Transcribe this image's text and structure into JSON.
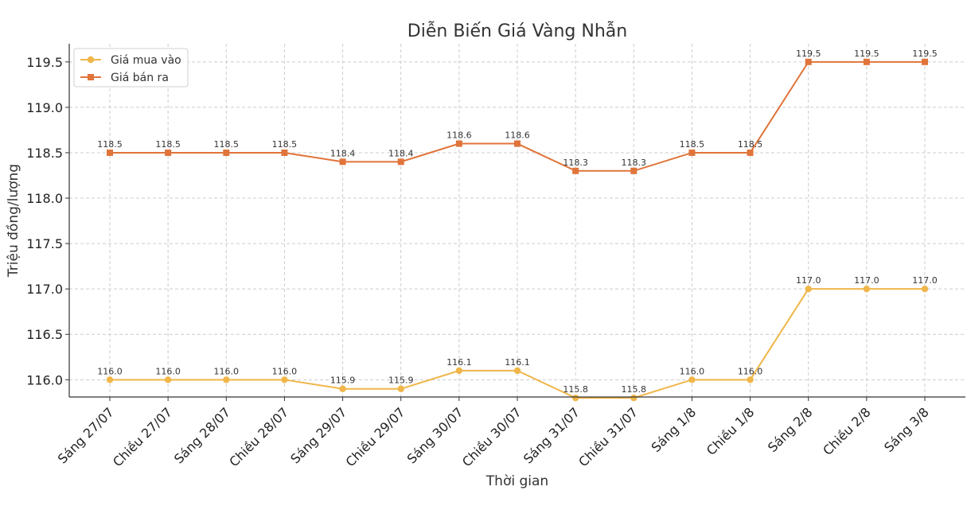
{
  "chart_data": {
    "type": "line",
    "title": "Diễn Biến Giá Vàng Nhẫn",
    "xlabel": "Thời gian",
    "ylabel": "Triệu đồng/lượng",
    "categories": [
      "Sáng 27/07",
      "Chiều 27/07",
      "Sáng 28/07",
      "Chiều 28/07",
      "Sáng 29/07",
      "Chiều 29/07",
      "Sáng 30/07",
      "Chiều 30/07",
      "Sáng 31/07",
      "Chiều 31/07",
      "Sáng 1/8",
      "Chiều 1/8",
      "Sáng 2/8",
      "Chiều 2/8",
      "Sáng 3/8"
    ],
    "yticks": [
      "116.0",
      "116.5",
      "117.0",
      "117.5",
      "118.0",
      "118.5",
      "119.0",
      "119.5"
    ],
    "ylim": [
      115.81,
      119.7
    ],
    "grid": true,
    "legend_position": "top-left",
    "series": [
      {
        "name": "Giá mua vào",
        "color": "#F0B64A",
        "marker": "circle",
        "values": [
          116.0,
          116.0,
          116.0,
          116.0,
          115.9,
          115.9,
          116.1,
          116.1,
          115.8,
          115.8,
          116.0,
          116.0,
          117.0,
          117.0,
          117.0
        ],
        "labels": [
          "116.0",
          "116.0",
          "116.0",
          "116.0",
          "115.9",
          "115.9",
          "116.1",
          "116.1",
          "115.8",
          "115.8",
          "116.0",
          "116.0",
          "117.0",
          "117.0",
          "117.0"
        ]
      },
      {
        "name": "Giá bán ra",
        "color": "#E0743A",
        "marker": "square",
        "values": [
          118.5,
          118.5,
          118.5,
          118.5,
          118.4,
          118.4,
          118.6,
          118.6,
          118.3,
          118.3,
          118.5,
          118.5,
          119.5,
          119.5,
          119.5
        ],
        "labels": [
          "118.5",
          "118.5",
          "118.5",
          "118.5",
          "118.4",
          "118.4",
          "118.6",
          "118.6",
          "118.3",
          "118.3",
          "118.5",
          "118.5",
          "119.5",
          "119.5",
          "119.5"
        ]
      }
    ]
  }
}
